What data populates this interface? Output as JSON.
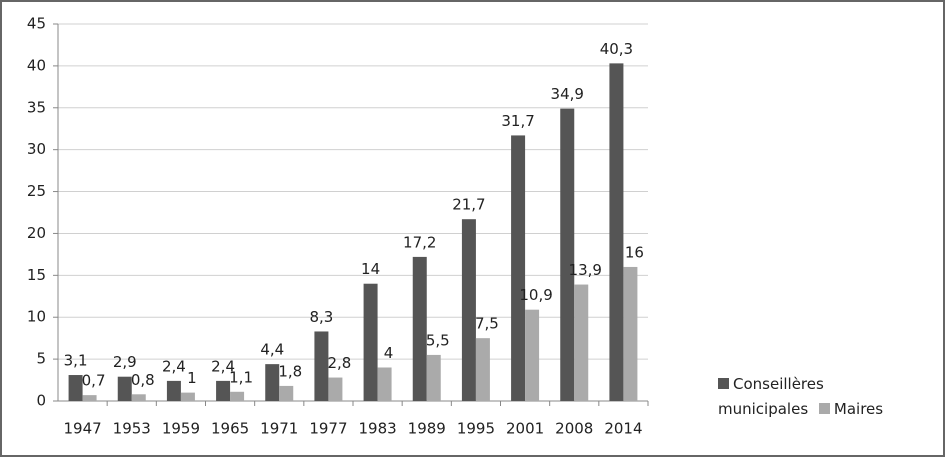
{
  "chart_data": {
    "type": "bar",
    "categories": [
      "1947",
      "1953",
      "1959",
      "1965",
      "1971",
      "1977",
      "1983",
      "1989",
      "1995",
      "2001",
      "2008",
      "2014"
    ],
    "series": [
      {
        "name": "Conseillères municipales",
        "color": "#555555",
        "values": [
          3.1,
          2.9,
          2.4,
          2.4,
          4.4,
          8.3,
          14,
          17.2,
          21.7,
          31.7,
          34.9,
          40.3
        ],
        "value_labels": [
          "3,1",
          "2,9",
          "2,4",
          "2,4",
          "4,4",
          "8,3",
          "14",
          "17,2",
          "21,7",
          "31,7",
          "34,9",
          "40,3"
        ]
      },
      {
        "name": "Maires",
        "color": "#aaaaaa",
        "values": [
          0.7,
          0.8,
          1,
          1.1,
          1.8,
          2.8,
          4,
          5.5,
          7.5,
          10.9,
          13.9,
          16
        ],
        "value_labels": [
          "0,7",
          "0,8",
          "1",
          "1,1",
          "1,8",
          "2,8",
          "4",
          "5,5",
          "7,5",
          "10,9",
          "13,9",
          "16"
        ]
      }
    ],
    "ylim": [
      0,
      45
    ],
    "yticks": [
      0,
      5,
      10,
      15,
      20,
      25,
      30,
      35,
      40,
      45
    ],
    "grid": true,
    "legend": "right"
  }
}
